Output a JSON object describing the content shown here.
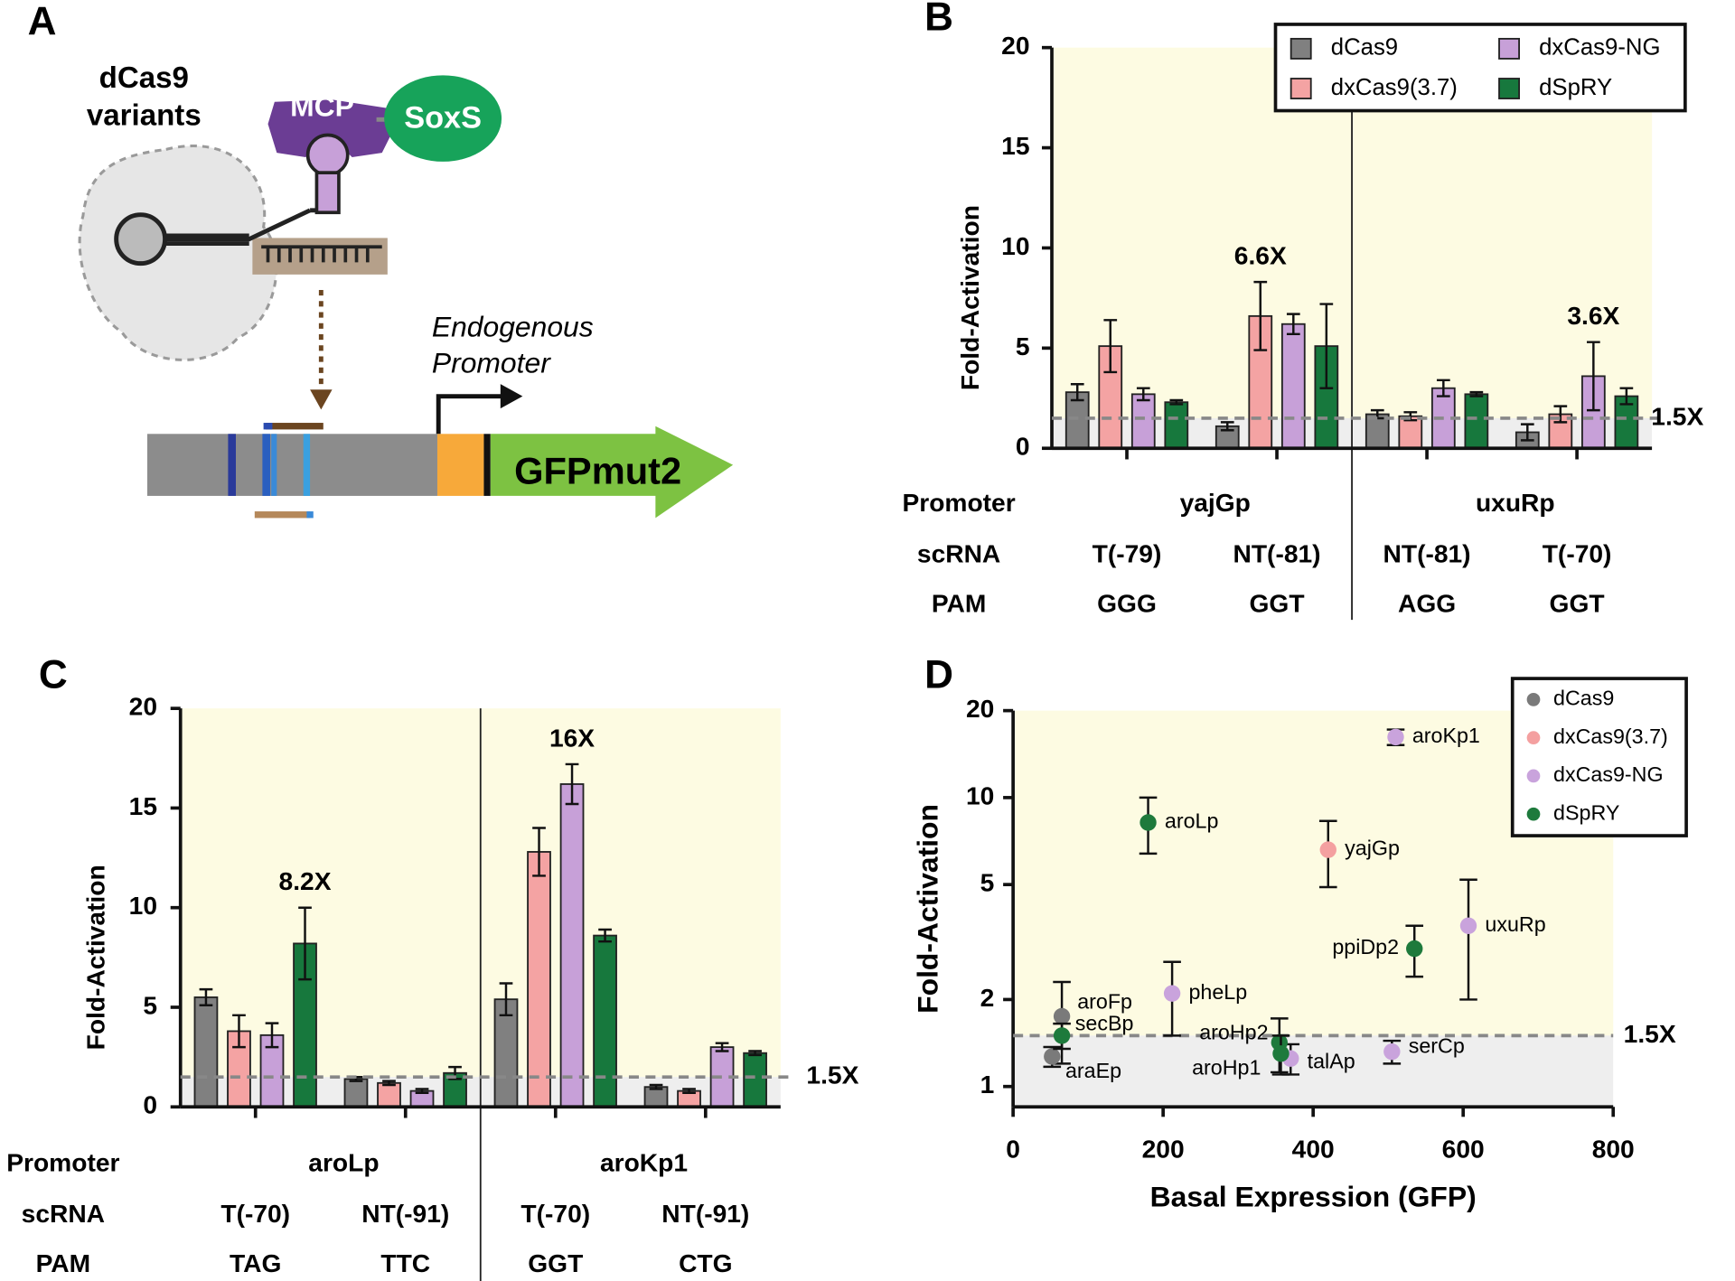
{
  "diagram": {
    "panel": "A",
    "variant_label": [
      "dCas9",
      "variants"
    ],
    "mcp": "MCP",
    "activator": "SoxS",
    "promoter_label": [
      "Endogenous",
      "Promoter"
    ],
    "reporter": "GFPmut2"
  },
  "chart_data": [
    {
      "panel": "B",
      "type": "bar",
      "y_label": "Fold-Activation",
      "row_labels": [
        "Promoter",
        "scRNA",
        "PAM"
      ],
      "promoters": [
        "yajGp",
        "uxuRp"
      ],
      "categories": [
        "T(-79)",
        "NT(-81)",
        "NT(-81)",
        "T(-70)"
      ],
      "pam": [
        "GGG",
        "GGT",
        "AGG",
        "GGT"
      ],
      "ylim": [
        0,
        20
      ],
      "yticks": [
        0,
        5,
        10,
        15,
        20
      ],
      "threshold": 1.5,
      "threshold_label": "1.5X",
      "legend": "upper right",
      "series": [
        {
          "name": "dCas9",
          "color": "#808080",
          "values": [
            2.8,
            1.1,
            1.7,
            0.8
          ],
          "errors": [
            0.4,
            0.2,
            0.2,
            0.4
          ]
        },
        {
          "name": "dxCas9(3.7)",
          "color": "#f4a3a3",
          "values": [
            5.1,
            6.6,
            1.6,
            1.7
          ],
          "errors": [
            1.3,
            1.7,
            0.2,
            0.4
          ],
          "value_labels": [
            null,
            "6.6X",
            null,
            null
          ]
        },
        {
          "name": "dxCas9-NG",
          "color": "#c7a0d8",
          "values": [
            2.7,
            6.2,
            3.0,
            3.6
          ],
          "errors": [
            0.3,
            0.5,
            0.4,
            1.7
          ],
          "value_labels": [
            null,
            null,
            null,
            "3.6X"
          ]
        },
        {
          "name": "dSpRY",
          "color": "#17783d",
          "values": [
            2.3,
            5.1,
            2.7,
            2.6
          ],
          "errors": [
            0.1,
            2.1,
            0.1,
            0.4
          ]
        }
      ]
    },
    {
      "panel": "C",
      "type": "bar",
      "y_label": "Fold-Activation",
      "row_labels": [
        "Promoter",
        "scRNA",
        "PAM"
      ],
      "promoters": [
        "aroLp",
        "aroKp1"
      ],
      "categories": [
        "T(-70)",
        "NT(-91)",
        "T(-70)",
        "NT(-91)"
      ],
      "pam": [
        "TAG",
        "TTC",
        "GGT",
        "CTG"
      ],
      "ylim": [
        0,
        20
      ],
      "yticks": [
        0,
        5,
        10,
        15,
        20
      ],
      "threshold": 1.5,
      "threshold_label": "1.5X",
      "series": [
        {
          "name": "dCas9",
          "color": "#808080",
          "values": [
            5.5,
            1.4,
            5.4,
            1.0
          ],
          "errors": [
            0.4,
            0.1,
            0.8,
            0.1
          ]
        },
        {
          "name": "dxCas9(3.7)",
          "color": "#f4a3a3",
          "values": [
            3.8,
            1.2,
            12.8,
            0.8
          ],
          "errors": [
            0.8,
            0.1,
            1.2,
            0.1
          ]
        },
        {
          "name": "dxCas9-NG",
          "color": "#c7a0d8",
          "values": [
            3.6,
            0.8,
            16.2,
            3.0
          ],
          "errors": [
            0.6,
            0.1,
            1.0,
            0.2
          ],
          "value_labels": [
            null,
            null,
            "16X",
            null
          ]
        },
        {
          "name": "dSpRY",
          "color": "#17783d",
          "values": [
            8.2,
            1.7,
            8.6,
            2.7
          ],
          "errors": [
            1.8,
            0.3,
            0.3,
            0.1
          ],
          "value_labels": [
            "8.2X",
            null,
            null,
            null
          ]
        }
      ]
    },
    {
      "panel": "D",
      "type": "scatter",
      "x_label": "Basal Expression (GFP)",
      "y_label": "Fold-Activation",
      "xlim": [
        0,
        800
      ],
      "xticks": [
        0,
        200,
        400,
        600,
        800
      ],
      "ylim": [
        0.85,
        20
      ],
      "yticks": [
        1,
        2,
        5,
        10,
        20
      ],
      "log_y": true,
      "threshold": 1.5,
      "threshold_label": "1.5X",
      "legend": "upper right",
      "series": [
        {
          "name": "dCas9",
          "color": "#7a7a7a",
          "x": [
            65,
            52
          ],
          "values": [
            1.75,
            1.27
          ],
          "errors": [
            0.55,
            0.1
          ],
          "point_labels": [
            "aroFp",
            "araEp"
          ]
        },
        {
          "name": "dxCas9(3.7)",
          "color": "#f4a0a0",
          "x": [
            420
          ],
          "values": [
            6.6
          ],
          "errors": [
            1.7
          ],
          "point_labels": [
            "yajGp"
          ]
        },
        {
          "name": "dxCas9-NG",
          "color": "#c9a3dc",
          "x": [
            510,
            212,
            607,
            370,
            505
          ],
          "values": [
            16.2,
            2.1,
            3.6,
            1.25,
            1.32
          ],
          "errors": [
            1.0,
            0.6,
            1.6,
            0.15,
            0.12
          ],
          "point_labels": [
            "aroKp1",
            "pheLp",
            "uxuRp",
            "talAp",
            "serCp"
          ]
        },
        {
          "name": "dSpRY",
          "color": "#1e7a3c",
          "x": [
            180,
            535,
            355,
            357,
            65
          ],
          "values": [
            8.2,
            3.0,
            1.42,
            1.3,
            1.5
          ],
          "errors": [
            1.8,
            0.6,
            0.3,
            0.2,
            0.15
          ],
          "point_labels": [
            "aroLp",
            "ppiDp2",
            "aroHp2",
            "aroHp1",
            "secBp"
          ]
        }
      ]
    }
  ]
}
